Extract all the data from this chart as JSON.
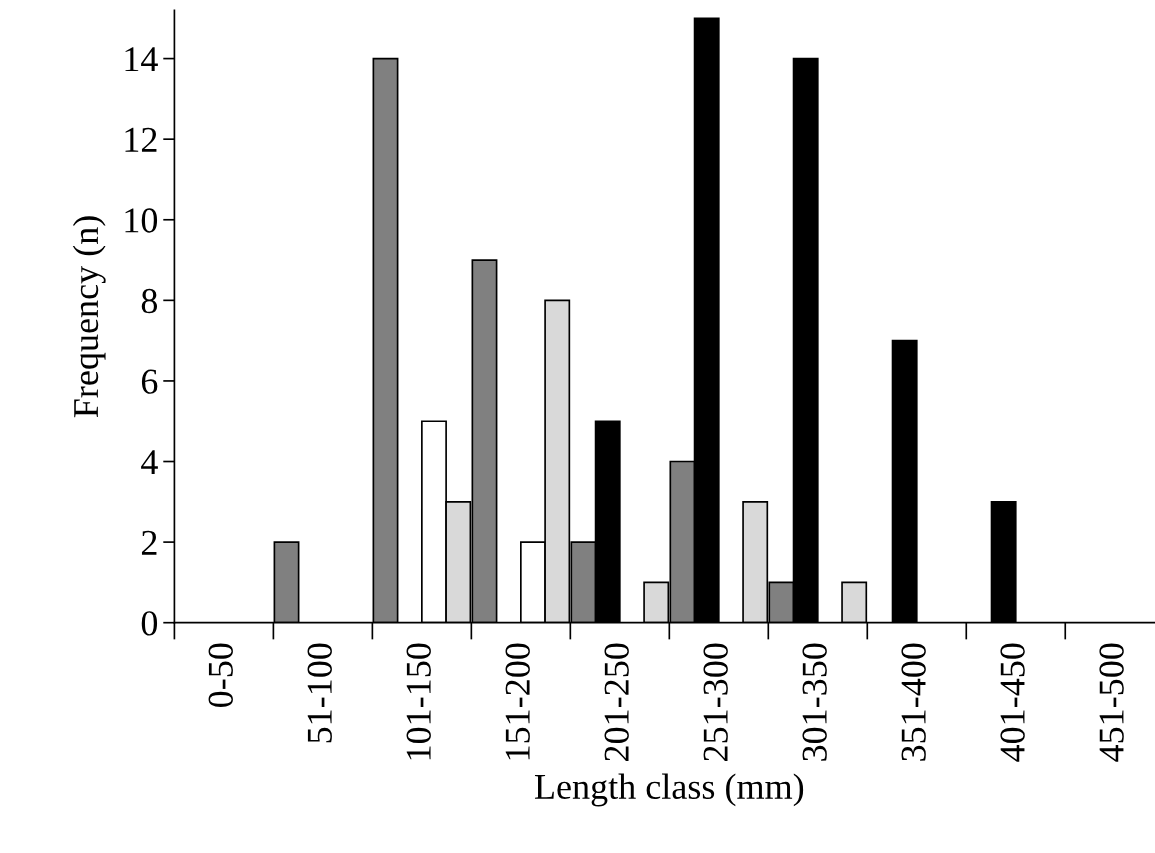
{
  "chart_data": {
    "type": "bar",
    "xlabel": "Length class (mm)",
    "ylabel": "Frequency (n)",
    "categories": [
      "0-50",
      "51-100",
      "101-150",
      "151-200",
      "201-250",
      "251-300",
      "301-350",
      "351-400",
      "401-450",
      "451-500"
    ],
    "series": [
      {
        "color": "#808080",
        "values": [
          0,
          2,
          14,
          9,
          2,
          4,
          1,
          0,
          0,
          0
        ]
      },
      {
        "color": "#000000",
        "values": [
          0,
          0,
          0,
          0,
          5,
          15,
          14,
          7,
          3,
          0
        ]
      },
      {
        "color": "#ffffff",
        "values": [
          0,
          0,
          5,
          2,
          0,
          0,
          0,
          0,
          0,
          0
        ]
      },
      {
        "color": "#d9d9d9",
        "values": [
          0,
          0,
          3,
          8,
          1,
          3,
          1,
          0,
          0,
          0
        ]
      }
    ],
    "ylim": [
      0,
      15.2
    ],
    "yticks": [
      0,
      2,
      4,
      6,
      8,
      10,
      12,
      14
    ],
    "grid": false,
    "legend": false
  }
}
